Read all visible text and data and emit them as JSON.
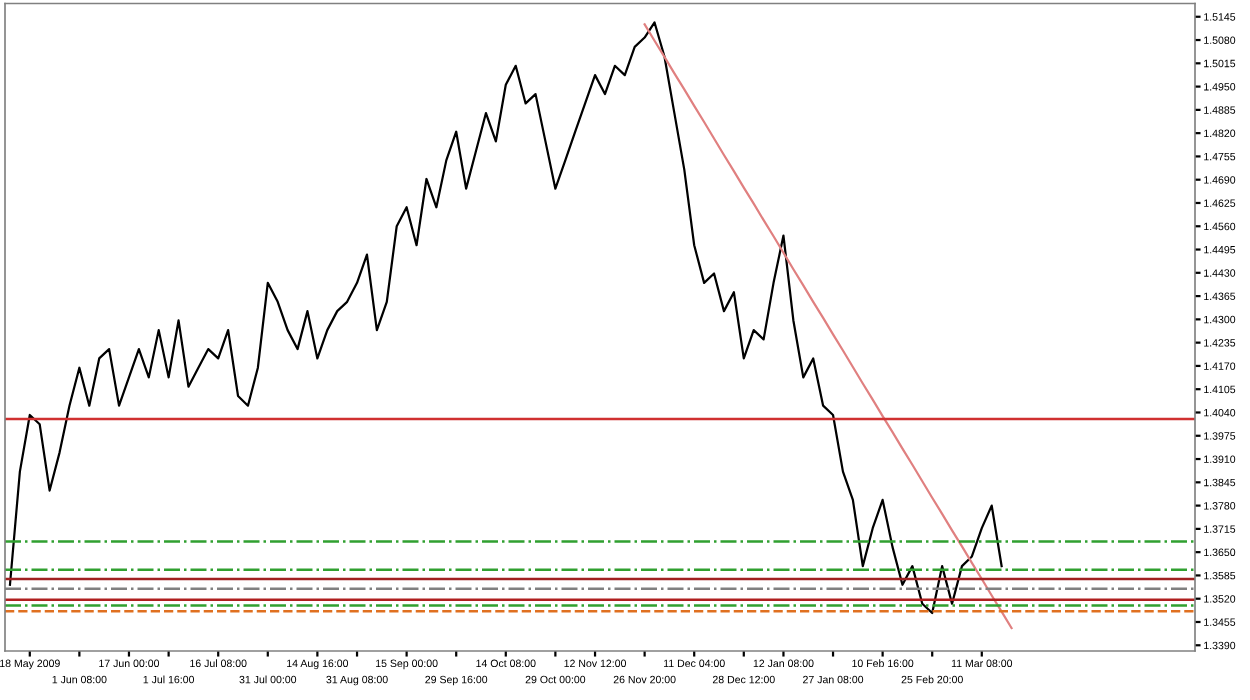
{
  "chart_data": {
    "type": "line",
    "categories": [
      null,
      null,
      "18 May 2009",
      null,
      null,
      null,
      null,
      "1 Jun 08:00",
      null,
      null,
      null,
      null,
      "17 Jun 00:00",
      null,
      null,
      null,
      "1 Jul 16:00",
      null,
      null,
      null,
      null,
      "16 Jul 08:00",
      null,
      null,
      null,
      null,
      "31 Jul 00:00",
      null,
      null,
      null,
      null,
      "14 Aug 16:00",
      null,
      null,
      null,
      "31 Aug 08:00",
      null,
      null,
      null,
      null,
      "15 Sep 00:00",
      null,
      null,
      null,
      null,
      "29 Sep 16:00",
      null,
      null,
      null,
      null,
      "14 Oct 08:00",
      null,
      null,
      null,
      null,
      "29 Oct 00:00",
      null,
      null,
      null,
      "12 Nov 12:00",
      null,
      null,
      null,
      null,
      "26 Nov 20:00",
      null,
      null,
      null,
      null,
      "11 Dec 04:00",
      null,
      null,
      null,
      null,
      "28 Dec 12:00",
      null,
      null,
      null,
      "12 Jan 08:00",
      null,
      null,
      null,
      null,
      "27 Jan 08:00",
      null,
      null,
      null,
      null,
      "10 Feb 16:00",
      null,
      null,
      null,
      null,
      "25 Feb 20:00",
      null,
      null,
      null,
      null,
      "11 Mar 08:00",
      null,
      null,
      null,
      null,
      null,
      null,
      null,
      null,
      null,
      null,
      null,
      null,
      null,
      null,
      null,
      null,
      null,
      null,
      null,
      null,
      null
    ],
    "series": [
      {
        "color": "#000000",
        "values": [
          1.3559,
          1.3875,
          1.4033,
          1.4007,
          1.3822,
          1.3928,
          1.4059,
          1.4165,
          1.4059,
          1.4191,
          1.4217,
          1.4059,
          1.4138,
          1.4217,
          1.4138,
          1.427,
          1.4138,
          1.4297,
          1.4112,
          1.4165,
          1.4217,
          1.4191,
          1.427,
          1.4086,
          1.4059,
          1.4165,
          1.4402,
          1.4349,
          1.427,
          1.4217,
          1.4323,
          1.4191,
          1.427,
          1.4323,
          1.4349,
          1.4402,
          1.4481,
          1.427,
          1.4349,
          1.456,
          1.4613,
          1.4507,
          1.4692,
          1.4613,
          1.4744,
          1.4824,
          1.4665,
          1.4771,
          1.4876,
          1.4797,
          1.4955,
          1.5008,
          1.4903,
          1.4929,
          1.4797,
          1.4665,
          1.4744,
          1.4824,
          1.4903,
          1.4982,
          1.4929,
          1.5008,
          1.4982,
          1.5061,
          1.5087,
          1.5129,
          1.5034,
          1.4876,
          1.4718,
          1.4507,
          1.4402,
          1.4428,
          1.4323,
          1.4376,
          1.4191,
          1.427,
          1.4244,
          1.4402,
          1.4534,
          1.4297,
          1.4138,
          1.4191,
          1.4059,
          1.4033,
          1.3875,
          1.3796,
          1.3611,
          1.3717,
          1.3796,
          1.3664,
          1.3559,
          1.3611,
          1.3506,
          1.348,
          1.3611,
          1.3506,
          1.3611,
          1.3638,
          1.3717,
          1.378,
          1.3611,
          null,
          null,
          null,
          null,
          null,
          null,
          null,
          null,
          null,
          null,
          null,
          null,
          null,
          null,
          null,
          null,
          null,
          null,
          null
        ]
      },
      {
        "type": "line",
        "color": "#e08080",
        "values": [
          null,
          null,
          null,
          null,
          null,
          null,
          null,
          null,
          null,
          null,
          null,
          null,
          null,
          null,
          null,
          null,
          null,
          null,
          null,
          null,
          null,
          null,
          null,
          null,
          null,
          null,
          null,
          null,
          null,
          null,
          null,
          null,
          null,
          null,
          null,
          null,
          null,
          null,
          null,
          null,
          null,
          null,
          null,
          null,
          null,
          null,
          null,
          null,
          null,
          null,
          null,
          null,
          null,
          null,
          null,
          null,
          null,
          null,
          null,
          null,
          null,
          null,
          null,
          null,
          1.5124,
          1.5078,
          1.5033,
          1.4987,
          1.4942,
          1.4896,
          1.4851,
          1.4805,
          1.4759,
          1.4714,
          1.4668,
          1.4623,
          1.4577,
          1.4532,
          1.4486,
          1.444,
          1.4395,
          1.4349,
          1.4304,
          1.4258,
          1.4213,
          1.4167,
          1.4121,
          1.4076,
          1.403,
          1.3985,
          1.3939,
          1.3894,
          1.3848,
          1.3802,
          1.3757,
          1.3711,
          1.3666,
          1.362,
          1.3575,
          1.3529,
          1.3484,
          1.3438,
          null,
          null,
          null,
          null,
          null,
          null,
          null,
          null,
          null,
          null,
          null,
          null,
          null,
          null,
          null,
          null,
          null,
          null
        ]
      }
    ],
    "ylim": [
      1.3374,
      1.5182
    ],
    "yticks": [
      1.5145,
      {
        "value": 1.508,
        "label": "1.5080"
      },
      1.5015,
      {
        "value": 1.495,
        "label": "1.4950"
      },
      1.4885,
      {
        "value": 1.482,
        "label": "1.4820"
      },
      1.4755,
      {
        "value": 1.469,
        "label": "1.4690"
      },
      1.4625,
      {
        "value": 1.456,
        "label": "1.4560"
      },
      1.4495,
      {
        "value": 1.443,
        "label": "1.4430"
      },
      1.4365,
      {
        "value": 1.43,
        "label": "1.4300"
      },
      1.4235,
      {
        "value": 1.417,
        "label": "1.4170"
      },
      1.4105,
      {
        "value": 1.404,
        "label": "1.4040"
      },
      1.3975,
      {
        "value": 1.391,
        "label": "1.3910"
      },
      1.3845,
      {
        "value": 1.378,
        "label": "1.3780"
      },
      1.3715,
      {
        "value": 1.365,
        "label": "1.3650"
      },
      1.3585,
      {
        "value": 1.352,
        "label": "1.3520"
      },
      1.3455,
      {
        "value": 1.339,
        "label": "1.3390"
      }
    ],
    "ref_lines": [
      {
        "axis": "y",
        "value": 1.4022,
        "color": "#d03030",
        "line_style": "solid"
      },
      {
        "axis": "y",
        "value": 1.368,
        "color": "#30a030",
        "line_style": "dashdot"
      },
      {
        "axis": "y",
        "value": 1.3601,
        "color": "#30a030",
        "line_style": "dashdot"
      },
      {
        "axis": "y",
        "value": 1.3575,
        "color": "#a02020",
        "line_style": "solid"
      },
      {
        "axis": "y",
        "value": 1.3548,
        "color": "#808080",
        "line_style": "dashdot"
      },
      {
        "axis": "y",
        "value": 1.3517,
        "color": "#b02020",
        "line_style": "solid"
      },
      {
        "axis": "y",
        "value": 1.3501,
        "color": "#30a030",
        "line_style": "dashdot"
      },
      {
        "axis": "y",
        "value": 1.3485,
        "color": "#e07020",
        "line_style": "dashed"
      }
    ],
    "grid": false,
    "legend": false
  }
}
